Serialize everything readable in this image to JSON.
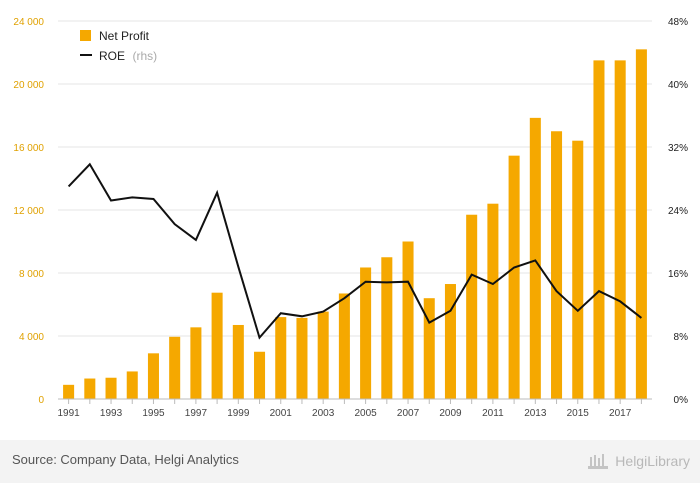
{
  "chart_data": {
    "type": "bar",
    "categories": [
      "1991",
      "1992",
      "1993",
      "1994",
      "1995",
      "1996",
      "1997",
      "1998",
      "1999",
      "2000",
      "2001",
      "2002",
      "2003",
      "2004",
      "2005",
      "2006",
      "2007",
      "2008",
      "2009",
      "2010",
      "2011",
      "2012",
      "2013",
      "2014",
      "2015",
      "2016",
      "2017",
      "2018"
    ],
    "x_tick_labels": [
      "1991",
      "1993",
      "1995",
      "1997",
      "1999",
      "2001",
      "2003",
      "2005",
      "2007",
      "2009",
      "2011",
      "2013",
      "2015",
      "2017"
    ],
    "series": [
      {
        "name": "Net Profit",
        "type": "bar",
        "axis": "left",
        "color": "#f5a800",
        "values": [
          900,
          1300,
          1350,
          1750,
          2900,
          3950,
          4550,
          6750,
          4700,
          3000,
          5200,
          5150,
          5550,
          6700,
          8350,
          9000,
          10000,
          6400,
          7300,
          11700,
          12400,
          15450,
          17850,
          17000,
          16400,
          21500,
          21500,
          22200
        ]
      },
      {
        "name": "ROE",
        "name_note": "(rhs)",
        "type": "line",
        "axis": "right",
        "color": "#111111",
        "values": [
          27,
          29.8,
          25.2,
          25.6,
          25.4,
          22.2,
          20.2,
          26.2,
          16.8,
          7.8,
          10.9,
          10.5,
          11.1,
          12.8,
          14.9,
          14.8,
          14.9,
          9.7,
          11.2,
          15.8,
          14.6,
          16.7,
          17.6,
          13.7,
          11.2,
          13.7,
          12.4,
          10.3
        ]
      }
    ],
    "y_left": {
      "min": 0,
      "max": 24000,
      "ticks": [
        "0",
        "4 000",
        "8 000",
        "12 000",
        "16 000",
        "20 000",
        "24 000"
      ],
      "tick_values": [
        0,
        4000,
        8000,
        12000,
        16000,
        20000,
        24000
      ]
    },
    "y_right": {
      "min": 0,
      "max": 48,
      "ticks": [
        "0%",
        "8%",
        "16%",
        "24%",
        "32%",
        "40%",
        "48%"
      ],
      "tick_values": [
        0,
        8,
        16,
        24,
        32,
        40,
        48
      ]
    },
    "legend_position": "top-left",
    "grid": "horizontal"
  },
  "source": "Source: Company Data, Helgi Analytics",
  "brand": "HelgiLibrary"
}
